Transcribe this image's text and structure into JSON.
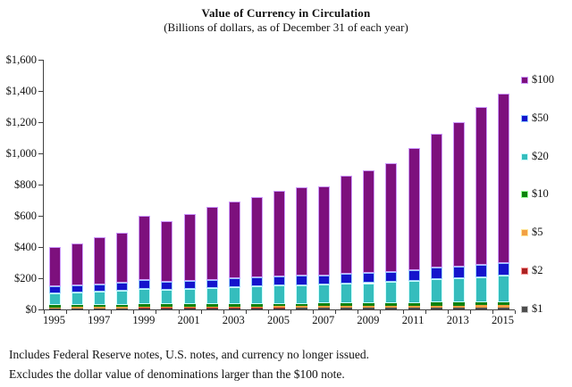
{
  "title": "Value of Currency in Circulation",
  "subtitle": "(Billions of dollars, as of December 31 of each year)",
  "footnotes": [
    "Includes Federal Reserve notes, U.S. notes, and currency no longer issued.",
    "Excludes the dollar value of denominations larger than the $100 note."
  ],
  "chart_data": {
    "type": "bar",
    "stacked": true,
    "title": "Value of Currency in Circulation",
    "subtitle": "(Billions of dollars, as of December 31 of each year)",
    "xlabel": "",
    "ylabel": "",
    "ylim": [
      0,
      1600
    ],
    "ytick_interval": 200,
    "y_tick_labels": [
      "$0",
      "$200",
      "$400",
      "$600",
      "$800",
      "$1,000",
      "$1,200",
      "$1,400",
      "$1,600"
    ],
    "grid": false,
    "legend_position": "right",
    "categories": [
      1995,
      1996,
      1997,
      1998,
      1999,
      2000,
      2001,
      2002,
      2003,
      2004,
      2005,
      2006,
      2007,
      2008,
      2009,
      2010,
      2011,
      2012,
      2013,
      2014,
      2015
    ],
    "x_tick_labels": [
      "1995",
      "1997",
      "1999",
      "2001",
      "2003",
      "2005",
      "2007",
      "2009",
      "2011",
      "2013",
      "2015"
    ],
    "totals_estimated": [
      400,
      425,
      460,
      490,
      600,
      565,
      610,
      655,
      690,
      720,
      760,
      785,
      790,
      855,
      890,
      940,
      1035,
      1125,
      1200,
      1300,
      1380
    ],
    "series": [
      {
        "name": "$1",
        "color": "#4d4d4d",
        "border": "#c6c6c6",
        "values": [
          5.9,
          6.1,
          6.4,
          6.8,
          7.5,
          7.7,
          7.8,
          8.0,
          8.2,
          8.4,
          8.6,
          8.8,
          9.0,
          9.2,
          9.4,
          9.6,
          9.8,
          10.3,
          10.6,
          11.0,
          11.4
        ]
      },
      {
        "name": "$2",
        "color": "#aa2222",
        "border": "#ff9999",
        "values": [
          0.9,
          1.0,
          1.0,
          1.1,
          1.2,
          1.2,
          1.3,
          1.4,
          1.4,
          1.5,
          1.5,
          1.6,
          1.6,
          1.7,
          1.8,
          1.9,
          2.0,
          2.1,
          2.2,
          2.3,
          2.4
        ]
      },
      {
        "name": "$5",
        "color": "#f2a044",
        "border": "#ffe699",
        "values": [
          7.2,
          7.6,
          8.0,
          8.3,
          9.0,
          8.7,
          9.0,
          9.3,
          9.7,
          9.9,
          10.2,
          10.5,
          10.7,
          11.2,
          11.4,
          11.8,
          12.1,
          12.5,
          12.9,
          13.4,
          13.8
        ]
      },
      {
        "name": "$10",
        "color": "#0e820e",
        "border": "#99ff99",
        "values": [
          13.2,
          13.6,
          14.0,
          14.4,
          15.3,
          14.7,
          14.9,
          15.2,
          15.5,
          15.7,
          16.0,
          16.3,
          16.4,
          17.0,
          17.1,
          17.5,
          17.9,
          18.5,
          18.9,
          19.4,
          19.9
        ]
      },
      {
        "name": "$20",
        "color": "#35bdbd",
        "border": "#ccffff",
        "values": [
          77,
          81,
          85,
          90,
          101,
          92,
          96,
          102,
          108,
          112,
          116,
          119,
          120,
          126,
          129,
          134,
          141,
          149,
          155,
          162,
          169
        ]
      },
      {
        "name": "$50",
        "color": "#1414cc",
        "border": "#99ccff",
        "values": [
          43,
          45,
          47,
          49,
          56,
          51,
          52,
          55,
          57,
          58,
          60,
          62,
          62,
          66,
          66,
          68,
          71,
          74,
          76,
          78,
          80
        ]
      },
      {
        "name": "$100",
        "color": "#7d107d",
        "border": "#cc99ff",
        "values": [
          253,
          271,
          299,
          320,
          410,
          390,
          429,
          464,
          490,
          515,
          548,
          567,
          570,
          624,
          655,
          697,
          781,
          859,
          924,
          1014,
          1084
        ]
      }
    ]
  }
}
